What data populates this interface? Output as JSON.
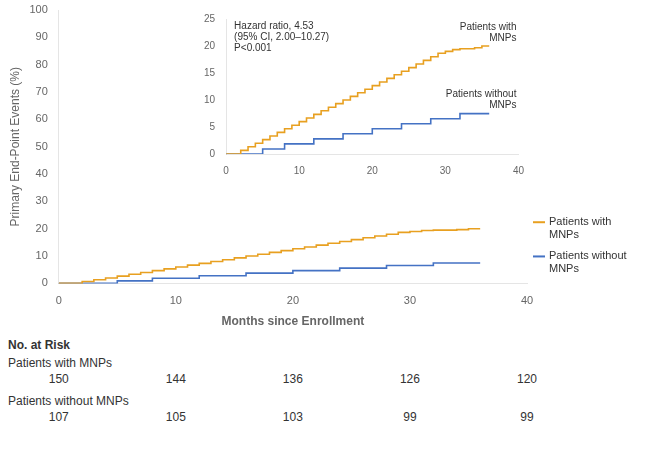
{
  "chart_data": [
    {
      "type": "step",
      "x_label": "Months since Enrollment",
      "y_label": "Primary End-Point Events (%)",
      "xlim": [
        0,
        40
      ],
      "ylim": [
        0,
        100
      ],
      "xticks": [
        0,
        10,
        20,
        30,
        40
      ],
      "yticks": [
        0,
        10,
        20,
        30,
        40,
        50,
        60,
        70,
        80,
        90,
        100
      ],
      "grid": false,
      "series": [
        {
          "name": "Patients with\nMNPs",
          "color": "#E8A020",
          "x": [
            0,
            1.5,
            2,
            2.5,
            3,
            3.5,
            4,
            4.5,
            5,
            5.5,
            6,
            6.5,
            7,
            7.5,
            8,
            8.5,
            9,
            9.5,
            10,
            10.5,
            11,
            11.5,
            12,
            12.5,
            13,
            13.5,
            14,
            14.5,
            15,
            15.5,
            16,
            16.5,
            17,
            17.5,
            18,
            18.5,
            19,
            19.5,
            20,
            20.5,
            21,
            21.5,
            22,
            22.5,
            23,
            23.5,
            24,
            24.5,
            25,
            25.5,
            26,
            26.5,
            27,
            27.5,
            28,
            28.5,
            29,
            29.5,
            30,
            30.5,
            31,
            31.5,
            32,
            33,
            34,
            34.5,
            35,
            36
          ],
          "values": [
            0,
            0,
            0.67,
            0.67,
            1.33,
            1.33,
            2.0,
            2.0,
            2.67,
            2.67,
            3.33,
            3.33,
            4.0,
            4.0,
            4.67,
            4.67,
            5.33,
            5.33,
            6.0,
            6.0,
            6.67,
            6.67,
            7.33,
            7.33,
            8.0,
            8.0,
            8.67,
            8.67,
            9.33,
            9.33,
            10.0,
            10.0,
            10.67,
            10.67,
            11.33,
            11.33,
            12.0,
            12.0,
            12.67,
            12.67,
            13.33,
            13.33,
            14.0,
            14.0,
            14.67,
            14.67,
            15.33,
            15.33,
            16.0,
            16.0,
            16.67,
            16.67,
            17.33,
            17.33,
            18.0,
            18.0,
            18.67,
            18.67,
            19.0,
            19.0,
            19.33,
            19.33,
            19.5,
            19.5,
            19.67,
            19.67,
            20.0,
            20.0
          ]
        },
        {
          "name": "Patients without\nMNPs",
          "color": "#4472C4",
          "x": [
            0,
            4,
            5,
            6,
            8,
            10,
            12,
            14,
            16,
            18,
            20,
            22,
            24,
            26,
            28,
            30,
            32,
            33,
            34,
            35,
            36
          ],
          "values": [
            0,
            0,
            0.93,
            0.93,
            1.87,
            1.87,
            2.8,
            2.8,
            3.74,
            3.74,
            4.67,
            4.67,
            5.6,
            5.6,
            6.54,
            6.54,
            7.48,
            7.48,
            7.48,
            7.48,
            7.48
          ]
        }
      ]
    },
    {
      "type": "step",
      "xlim": [
        0,
        40
      ],
      "ylim": [
        0,
        25
      ],
      "xticks": [
        0,
        10,
        20,
        30,
        40
      ],
      "yticks": [
        0,
        5,
        10,
        15,
        20,
        25
      ],
      "grid": false,
      "annotations": [
        "Hazard ratio, 4.53\n(95% CI, 2.00–10.27)\nP<0.001"
      ],
      "series": [
        {
          "name": "Patients with\nMNPs",
          "color": "#E8A020",
          "x": [
            0,
            1.5,
            2,
            2.5,
            3,
            3.5,
            4,
            4.5,
            5,
            5.5,
            6,
            6.5,
            7,
            7.5,
            8,
            8.5,
            9,
            9.5,
            10,
            10.5,
            11,
            11.5,
            12,
            12.5,
            13,
            13.5,
            14,
            14.5,
            15,
            15.5,
            16,
            16.5,
            17,
            17.5,
            18,
            18.5,
            19,
            19.5,
            20,
            20.5,
            21,
            21.5,
            22,
            22.5,
            23,
            23.5,
            24,
            24.5,
            25,
            25.5,
            26,
            26.5,
            27,
            27.5,
            28,
            28.5,
            29,
            29.5,
            30,
            30.5,
            31,
            31.5,
            32,
            33,
            34,
            34.5,
            35,
            36
          ],
          "values": [
            0,
            0,
            0.67,
            0.67,
            1.33,
            1.33,
            2.0,
            2.0,
            2.67,
            2.67,
            3.33,
            3.33,
            4.0,
            4.0,
            4.67,
            4.67,
            5.33,
            5.33,
            6.0,
            6.0,
            6.67,
            6.67,
            7.33,
            7.33,
            8.0,
            8.0,
            8.67,
            8.67,
            9.33,
            9.33,
            10.0,
            10.0,
            10.67,
            10.67,
            11.33,
            11.33,
            12.0,
            12.0,
            12.67,
            12.67,
            13.33,
            13.33,
            14.0,
            14.0,
            14.67,
            14.67,
            15.33,
            15.33,
            16.0,
            16.0,
            16.67,
            16.67,
            17.33,
            17.33,
            18.0,
            18.0,
            18.67,
            18.67,
            19.0,
            19.0,
            19.33,
            19.33,
            19.5,
            19.5,
            19.67,
            19.67,
            20.0,
            20.0
          ]
        },
        {
          "name": "Patients without\nMNPs",
          "color": "#4472C4",
          "x": [
            0,
            4,
            5,
            6,
            8,
            10,
            12,
            14,
            16,
            18,
            20,
            22,
            24,
            26,
            28,
            30,
            32,
            33,
            34,
            35,
            36
          ],
          "values": [
            0,
            0,
            0.93,
            0.93,
            1.87,
            1.87,
            2.8,
            2.8,
            3.74,
            3.74,
            4.67,
            4.67,
            5.6,
            5.6,
            6.54,
            6.54,
            7.48,
            7.48,
            7.48,
            7.48,
            7.48
          ]
        }
      ]
    },
    {
      "type": "table",
      "title": "No. at Risk",
      "x": [
        0,
        10,
        20,
        30,
        40
      ],
      "series": [
        {
          "name": "Patients with MNPs",
          "values": [
            150,
            144,
            136,
            126,
            120
          ]
        },
        {
          "name": "Patients without MNPs",
          "values": [
            107,
            105,
            103,
            99,
            99
          ]
        }
      ]
    }
  ]
}
